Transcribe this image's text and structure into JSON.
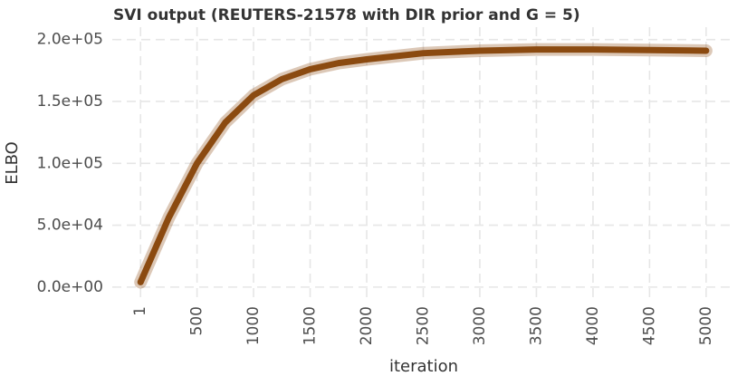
{
  "chart_data": {
    "type": "line",
    "title": "SVI output (REUTERS-21578 with DIR prior and G = 5)",
    "x_label": "iteration",
    "y_label": "ELBO",
    "x": [
      1,
      250,
      500,
      750,
      1000,
      1250,
      1500,
      1750,
      2000,
      2500,
      3000,
      3500,
      4000,
      4500,
      5000
    ],
    "series": [
      {
        "color": "#8b4a10",
        "values": [
          4000,
          56000,
          100000,
          133000,
          155000,
          168000,
          176000,
          181000,
          184000,
          189000,
          191000,
          192000,
          192000,
          191500,
          191000
        ]
      }
    ],
    "xlim": [
      -249,
      5249
    ],
    "xticks": [
      1,
      500,
      1000,
      1500,
      2000,
      2500,
      3000,
      3500,
      4000,
      4500,
      5000
    ],
    "ylim": [
      -9600,
      210000
    ],
    "yticks": [
      {
        "value": 0,
        "label": "0.0e+00"
      },
      {
        "value": 50000,
        "label": "5.0e+04"
      },
      {
        "value": 100000,
        "label": "1.0e+05"
      },
      {
        "value": 150000,
        "label": "1.5e+05"
      },
      {
        "value": 200000,
        "label": "2.0e+05"
      }
    ],
    "grid": true
  }
}
